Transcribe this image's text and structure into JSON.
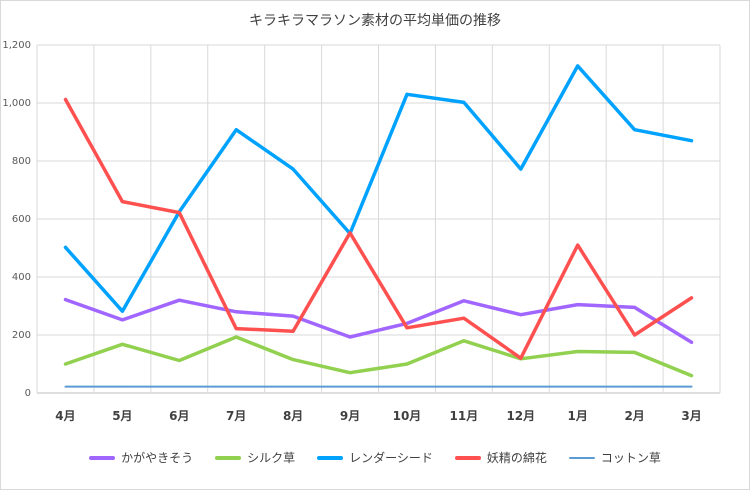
{
  "chart_data": {
    "type": "line",
    "title": "キラキラマラソン素材の平均単価の推移",
    "categories": [
      "4月",
      "5月",
      "6月",
      "7月",
      "8月",
      "9月",
      "10月",
      "11月",
      "12月",
      "1月",
      "2月",
      "3月"
    ],
    "ylim": [
      0,
      1200
    ],
    "yticks": [
      "0",
      "200",
      "400",
      "600",
      "800",
      "1,000",
      "1,200"
    ],
    "grid": true,
    "legend_position": "bottom",
    "series": [
      {
        "name": "かがやきそう",
        "color": "#a066ff",
        "values": [
          322,
          252,
          320,
          280,
          265,
          193,
          240,
          318,
          270,
          305,
          295,
          175
        ]
      },
      {
        "name": "シルク草",
        "color": "#92d050",
        "values": [
          100,
          168,
          112,
          193,
          115,
          70,
          100,
          180,
          118,
          143,
          140,
          60
        ]
      },
      {
        "name": "レンダーシード",
        "color": "#00a2ff",
        "values": [
          502,
          282,
          625,
          908,
          772,
          550,
          1030,
          1002,
          772,
          1128,
          908,
          870
        ]
      },
      {
        "name": "妖精の綿花",
        "color": "#ff5050",
        "values": [
          1012,
          660,
          622,
          222,
          213,
          552,
          225,
          258,
          120,
          510,
          200,
          328
        ]
      },
      {
        "name": "コットン草",
        "color": "#5b9bd5",
        "values": [
          22,
          22,
          22,
          22,
          22,
          22,
          22,
          22,
          22,
          22,
          22,
          22
        ]
      }
    ]
  }
}
